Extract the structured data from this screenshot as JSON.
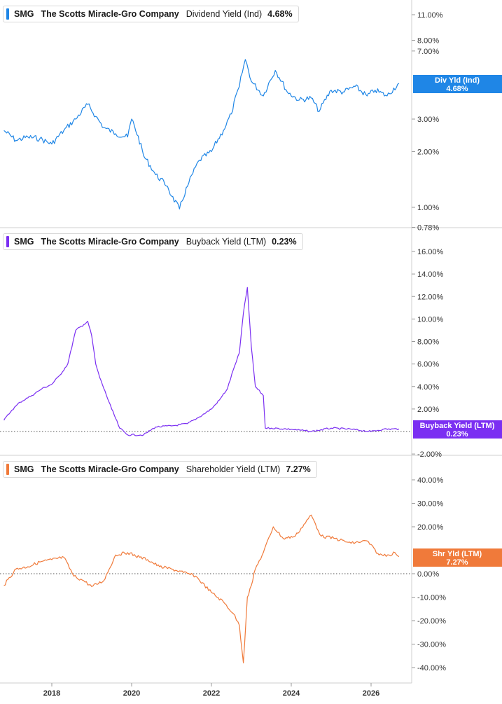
{
  "x_axis_labels": [
    "2018",
    "2020",
    "2022",
    "2024",
    "2026"
  ],
  "panels": [
    {
      "ticker": "SMG",
      "company": "The Scotts Miracle-Gro Company",
      "metric": "Dividend Yield (Ind)",
      "value": "4.68%",
      "badge_title": "Div Yld (Ind)",
      "badge_value": "4.68%",
      "color": "#1f86e6"
    },
    {
      "ticker": "SMG",
      "company": "The Scotts Miracle-Gro Company",
      "metric": "Buyback Yield (LTM)",
      "value": "0.23%",
      "badge_title": "Buyback Yield (LTM)",
      "badge_value": "0.23%",
      "color": "#7b2ff2"
    },
    {
      "ticker": "SMG",
      "company": "The Scotts Miracle-Gro Company",
      "metric": "Shareholder Yield (LTM)",
      "value": "7.27%",
      "badge_title": "Shr Yld (LTM)",
      "badge_value": "7.27%",
      "color": "#f07a3a"
    }
  ],
  "chart_data": [
    {
      "type": "line",
      "title": "SMG The Scotts Miracle-Gro Company Dividend Yield (Ind) 4.68%",
      "y_scale": "log",
      "ylim": [
        0.78,
        14.0
      ],
      "y_ticks": [
        {
          "value": 11.0,
          "label": "11.00%"
        },
        {
          "value": 8.0,
          "label": "8.00%"
        },
        {
          "value": 7.0,
          "label": "7.00%"
        },
        {
          "value": 3.0,
          "label": "3.00%"
        },
        {
          "value": 2.0,
          "label": "2.00%"
        },
        {
          "value": 1.0,
          "label": "1.00%"
        },
        {
          "value": 0.78,
          "label": "0.78%"
        }
      ],
      "series": [
        {
          "name": "Dividend Yield (Ind)",
          "x": [
            2016.8,
            2017.1,
            2017.4,
            2017.7,
            2018.0,
            2018.3,
            2018.6,
            2018.9,
            2019.1,
            2019.3,
            2019.6,
            2019.9,
            2020.0,
            2020.3,
            2020.6,
            2020.9,
            2021.0,
            2021.2,
            2021.4,
            2021.7,
            2022.0,
            2022.3,
            2022.5,
            2022.7,
            2022.85,
            2023.0,
            2023.3,
            2023.6,
            2023.9,
            2024.2,
            2024.5,
            2024.7,
            2025.0,
            2025.3,
            2025.6,
            2025.9,
            2026.1,
            2026.4,
            2026.7
          ],
          "values": [
            2.6,
            2.3,
            2.4,
            2.35,
            2.2,
            2.6,
            3.0,
            3.6,
            3.1,
            2.7,
            2.5,
            2.4,
            3.0,
            1.9,
            1.5,
            1.3,
            1.15,
            0.98,
            1.3,
            1.8,
            2.0,
            2.6,
            3.2,
            4.5,
            6.3,
            4.8,
            4.0,
            5.5,
            4.2,
            3.8,
            3.9,
            3.3,
            4.3,
            4.2,
            4.5,
            4.0,
            4.3,
            4.0,
            4.68
          ]
        }
      ]
    },
    {
      "type": "line",
      "title": "SMG The Scotts Miracle-Gro Company Buyback Yield (LTM) 0.23%",
      "ylim": [
        -2.0,
        16.0
      ],
      "y_ticks": [
        {
          "value": 16,
          "label": "16.00%"
        },
        {
          "value": 14,
          "label": "14.00%"
        },
        {
          "value": 12,
          "label": "12.00%"
        },
        {
          "value": 10,
          "label": "10.00%"
        },
        {
          "value": 8,
          "label": "8.00%"
        },
        {
          "value": 6,
          "label": "6.00%"
        },
        {
          "value": 4,
          "label": "4.00%"
        },
        {
          "value": 2,
          "label": "2.00%"
        },
        {
          "value": -2,
          "label": "-2.00%"
        }
      ],
      "series": [
        {
          "name": "Buyback Yield (LTM)",
          "x": [
            2016.8,
            2017.0,
            2017.2,
            2017.5,
            2017.75,
            2018.0,
            2018.2,
            2018.4,
            2018.6,
            2018.8,
            2018.9,
            2019.0,
            2019.1,
            2019.2,
            2019.5,
            2019.7,
            2019.9,
            2020.3,
            2020.6,
            2021.0,
            2021.4,
            2021.7,
            2022.0,
            2022.2,
            2022.4,
            2022.55,
            2022.7,
            2022.8,
            2022.9,
            2023.0,
            2023.1,
            2023.3,
            2023.35,
            2023.5,
            2024.0,
            2024.5,
            2025.0,
            2025.5,
            2026.0,
            2026.3,
            2026.7
          ],
          "values": [
            1.0,
            1.9,
            2.6,
            3.2,
            3.8,
            4.2,
            5.0,
            6.0,
            9.0,
            9.5,
            9.8,
            8.5,
            6.0,
            4.8,
            2.0,
            0.3,
            -0.3,
            -0.3,
            0.4,
            0.5,
            0.7,
            1.3,
            2.0,
            2.8,
            3.8,
            5.5,
            7.0,
            10.5,
            12.8,
            7.5,
            4.0,
            3.2,
            0.3,
            0.3,
            0.2,
            0.0,
            0.3,
            0.2,
            0.0,
            0.2,
            0.23
          ]
        }
      ]
    },
    {
      "type": "line",
      "title": "SMG The Scotts Miracle-Gro Company Shareholder Yield (LTM) 7.27%",
      "ylim": [
        -40.0,
        40.0
      ],
      "y_ticks": [
        {
          "value": 40,
          "label": "40.00%"
        },
        {
          "value": 30,
          "label": "30.00%"
        },
        {
          "value": 20,
          "label": "20.00%"
        },
        {
          "value": 0,
          "label": "0.00%"
        },
        {
          "value": -10,
          "label": "-10.00%"
        },
        {
          "value": -20,
          "label": "-20.00%"
        },
        {
          "value": -30,
          "label": "-30.00%"
        },
        {
          "value": -40,
          "label": "-40.00%"
        }
      ],
      "series": [
        {
          "name": "Shareholder Yield (LTM)",
          "x": [
            2016.8,
            2017.1,
            2017.4,
            2017.7,
            2018.0,
            2018.3,
            2018.55,
            2018.8,
            2019.0,
            2019.3,
            2019.6,
            2019.9,
            2020.2,
            2020.4,
            2020.7,
            2021.0,
            2021.3,
            2021.6,
            2022.0,
            2022.3,
            2022.55,
            2022.7,
            2022.8,
            2022.9,
            2023.0,
            2023.1,
            2023.3,
            2023.55,
            2023.8,
            2024.1,
            2024.5,
            2024.75,
            2025.1,
            2025.5,
            2025.9,
            2026.2,
            2026.45,
            2026.6,
            2026.7
          ],
          "values": [
            -5.0,
            2.0,
            3.0,
            5.0,
            6.0,
            7.0,
            -1.0,
            -3.0,
            -5.5,
            -3.0,
            8.0,
            9.0,
            7.0,
            6.0,
            3.0,
            2.0,
            0.5,
            -1.0,
            -8.0,
            -12.0,
            -17.0,
            -22.0,
            -38.0,
            -10.0,
            -5.0,
            2.0,
            9.0,
            20.0,
            15.0,
            16.0,
            25.0,
            16.0,
            15.0,
            13.0,
            14.0,
            8.0,
            8.0,
            9.0,
            7.27
          ]
        }
      ]
    }
  ]
}
